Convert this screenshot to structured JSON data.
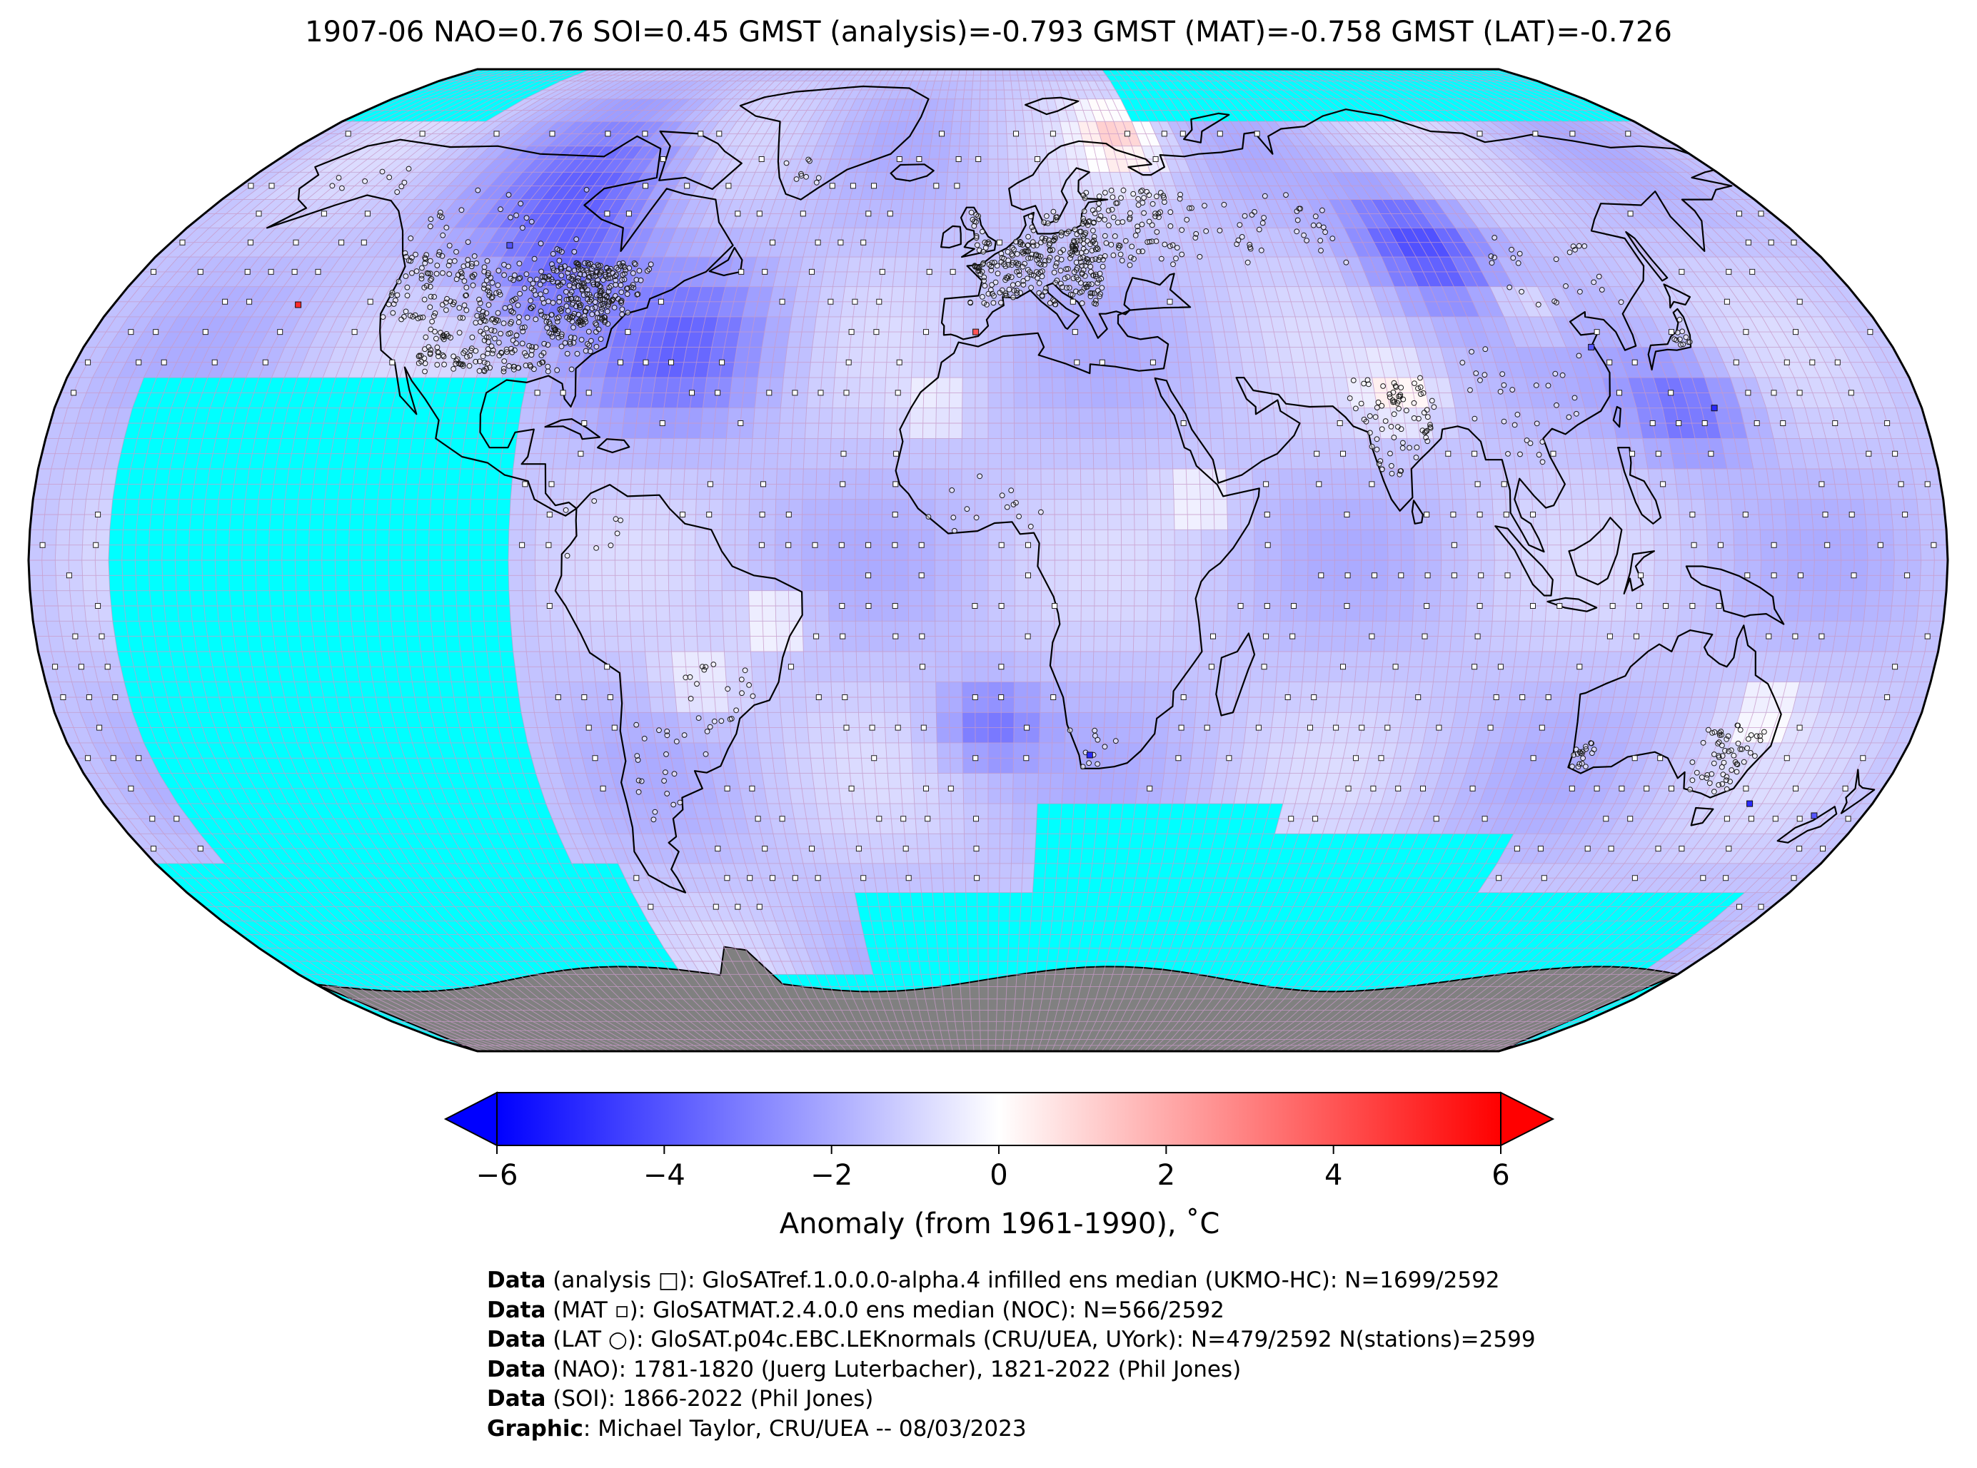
{
  "title": "1907-06 NAO=0.76 SOI=0.45 GMST (analysis)=-0.793 GMST (MAT)=-0.758 GMST (LAT)=-0.726",
  "colorbar": {
    "label": "Anomaly (from 1961-1990), ˚C",
    "ticks": [
      "−6",
      "−4",
      "−2",
      "0",
      "2",
      "4",
      "6"
    ],
    "range": [
      -6,
      6
    ],
    "colors": {
      "min": "#0000ff",
      "mid": "#ffffff",
      "max": "#ff0000"
    },
    "extend": "both"
  },
  "map": {
    "projection": "robinson",
    "colors": {
      "no_data": "#00ffff",
      "land_ice": "#808080",
      "grid": "#d8a8d8",
      "coast": "#000000"
    },
    "markers": [
      "analysis: open square",
      "MAT: small filled square",
      "LAT: open circle"
    ]
  },
  "credits": [
    {
      "bold": "Data",
      "text": " (analysis □): GloSATref.1.0.0.0-alpha.4 infilled ens median (UKMO-HC): N=1699/2592"
    },
    {
      "bold": "Data",
      "text": " (MAT ▫): GloSATMAT.2.4.0.0 ens median (NOC): N=566/2592"
    },
    {
      "bold": "Data",
      "text": " (LAT ○): GloSAT.p04c.EBC.LEKnormals (CRU/UEA, UYork): N=479/2592 N(stations)=2599"
    },
    {
      "bold": "Data",
      "text": " (NAO): 1781-1820 (Juerg Luterbacher), 1821-2022 (Phil Jones)"
    },
    {
      "bold": "Data",
      "text": " (SOI): 1866-2022 (Phil Jones)"
    },
    {
      "bold": "Graphic",
      "text": ": Michael Taylor, CRU/UEA -- 08/03/2023"
    }
  ]
}
